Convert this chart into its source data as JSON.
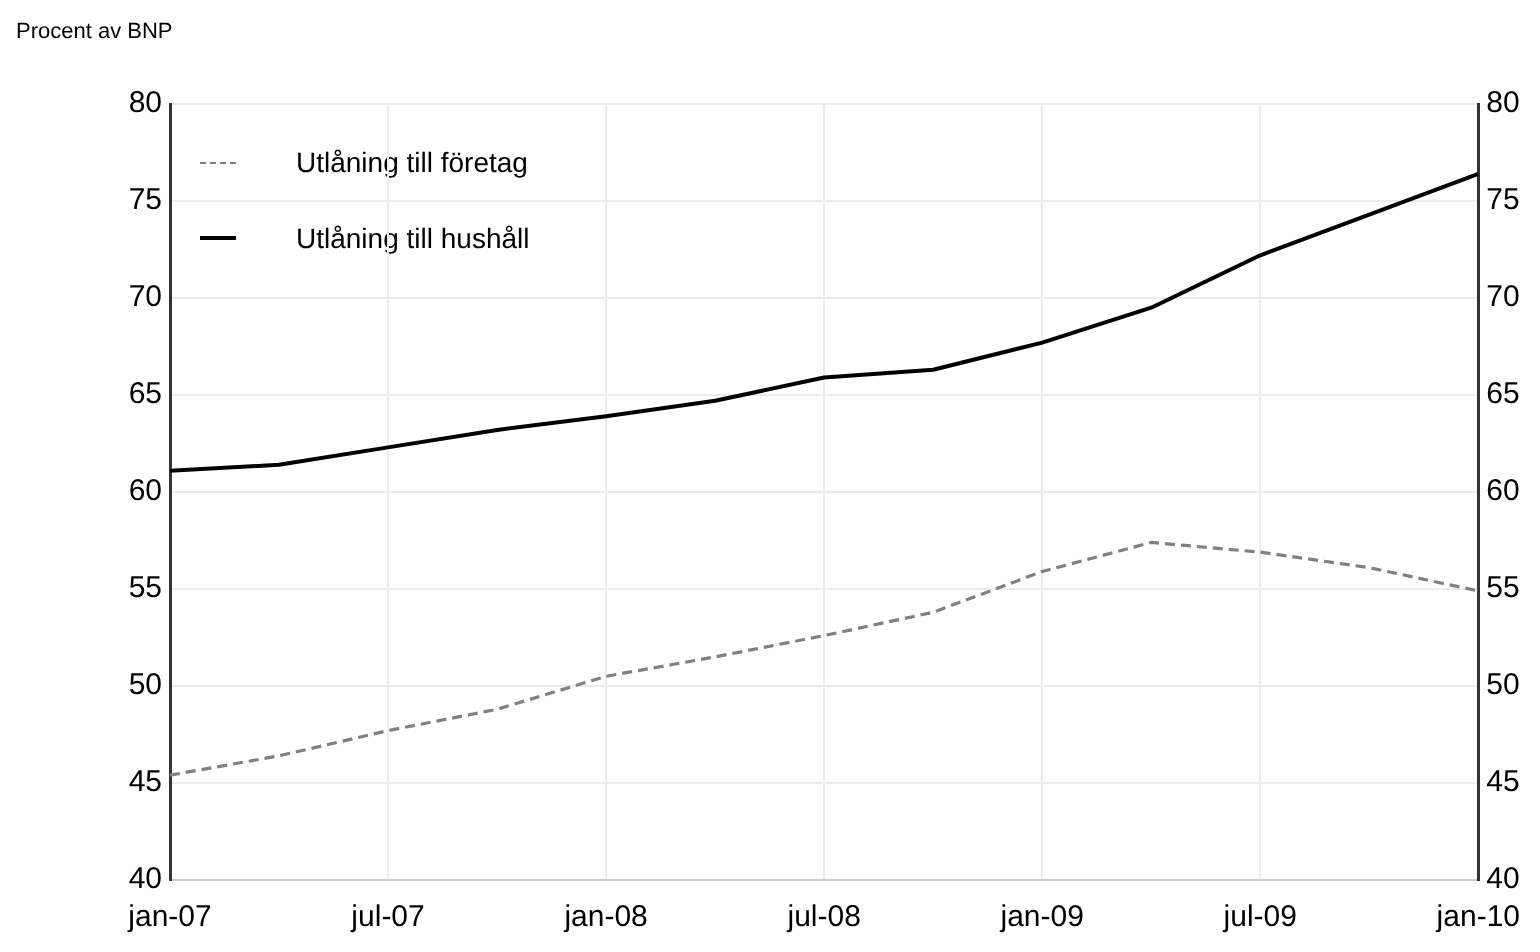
{
  "chart_data": {
    "type": "line",
    "ylabel": "Procent av BNP",
    "x": [
      "2007-01",
      "2007-04",
      "2007-07",
      "2007-10",
      "2008-01",
      "2008-04",
      "2008-07",
      "2008-10",
      "2009-01",
      "2009-04",
      "2009-07",
      "2009-10",
      "2010-01"
    ],
    "series": [
      {
        "name": "Utlåning till företag",
        "color": "#808080",
        "line_style": "dashed",
        "values": [
          45.4,
          46.4,
          47.7,
          48.8,
          50.5,
          51.5,
          52.6,
          53.8,
          55.9,
          57.4,
          56.9,
          56.1,
          54.9
        ]
      },
      {
        "name": "Utlåning till hushåll",
        "color": "#000000",
        "line_style": "solid",
        "values": [
          61.1,
          61.4,
          62.3,
          63.2,
          63.9,
          64.7,
          65.9,
          66.3,
          67.7,
          69.5,
          72.2,
          74.3,
          76.4
        ]
      }
    ],
    "xlim": [
      "2007-01",
      "2010-01"
    ],
    "xticks": [
      {
        "value": "2007-01",
        "label": "jan-07"
      },
      {
        "value": "2007-07",
        "label": "jul-07"
      },
      {
        "value": "2008-01",
        "label": "jan-08"
      },
      {
        "value": "2008-07",
        "label": "jul-08"
      },
      {
        "value": "2009-01",
        "label": "jan-09"
      },
      {
        "value": "2009-07",
        "label": "jul-09"
      },
      {
        "value": "2010-01",
        "label": "jan-10"
      }
    ],
    "ylim": [
      40,
      80
    ],
    "yticks": [
      40,
      45,
      50,
      55,
      60,
      65,
      70,
      75,
      80
    ],
    "y2lim": [
      40,
      80
    ],
    "y2ticks": [
      40,
      45,
      50,
      55,
      60,
      65,
      70,
      75,
      80
    ],
    "grid": true,
    "legend": "top left",
    "marker": "none"
  }
}
